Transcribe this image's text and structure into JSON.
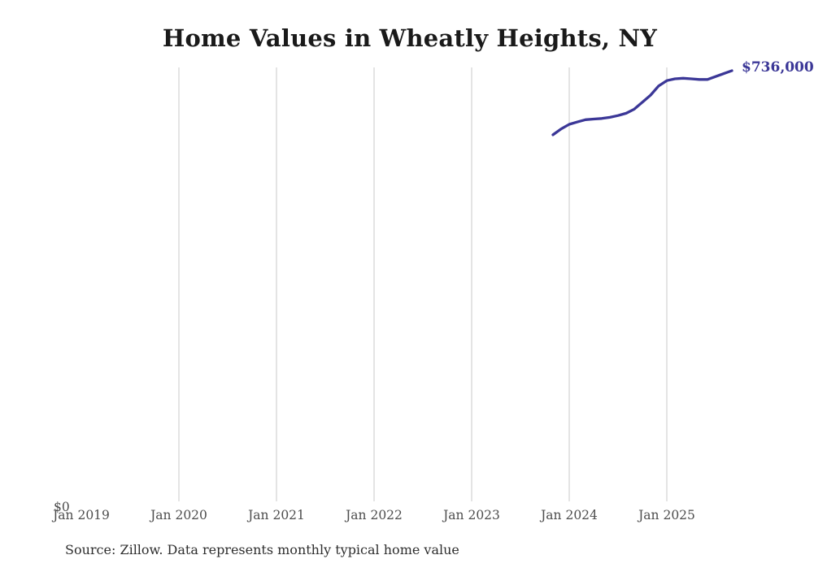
{
  "title": "Home Values in Wheatly Heights, NY",
  "source_note": "Source: Zillow. Data represents monthly typical home value",
  "end_label": "$736,000",
  "y_axis": {
    "zero_label": "$0"
  },
  "x_axis": {
    "tick_labels": [
      "Jan 2019",
      "Jan 2020",
      "Jan 2021",
      "Jan 2022",
      "Jan 2023",
      "Jan 2024",
      "Jan 2025"
    ]
  },
  "colors": {
    "line": "#3b3797",
    "end_label": "#3b3797",
    "gridline": "#c9c9c9",
    "axis_text": "#4d4d4d",
    "title_text": "#1a1a1a",
    "source_text": "#2e2e2e",
    "background": "#ffffff"
  },
  "chart_data": {
    "type": "line",
    "title": "Home Values in Wheatly Heights, NY",
    "series": [
      {
        "name": "Monthly typical home value",
        "x": [
          "2023-11",
          "2023-12",
          "2024-01",
          "2024-02",
          "2024-03",
          "2024-04",
          "2024-05",
          "2024-06",
          "2024-07",
          "2024-08",
          "2024-09",
          "2024-10",
          "2024-11",
          "2024-12",
          "2025-01",
          "2025-02",
          "2025-03",
          "2025-04",
          "2025-05",
          "2025-06",
          "2025-07",
          "2025-08",
          "2025-09"
        ],
        "values": [
          626000,
          636000,
          644000,
          648000,
          652000,
          653000,
          654000,
          656000,
          659000,
          663000,
          670000,
          682000,
          694000,
          710000,
          719000,
          722000,
          723000,
          722000,
          721000,
          721000,
          726000,
          731000,
          736000
        ]
      }
    ],
    "xlabel": "",
    "ylabel": "",
    "x_axis_tick_labels": [
      "Jan 2019",
      "Jan 2020",
      "Jan 2021",
      "Jan 2022",
      "Jan 2023",
      "Jan 2024",
      "Jan 2025"
    ],
    "x_axis_range_start": "2019-01",
    "ylim": [
      0,
      742000
    ],
    "grid": "vertical yearly gridlines, no gridline at first tick",
    "legend_position": "none",
    "end_annotation": "$736,000"
  }
}
